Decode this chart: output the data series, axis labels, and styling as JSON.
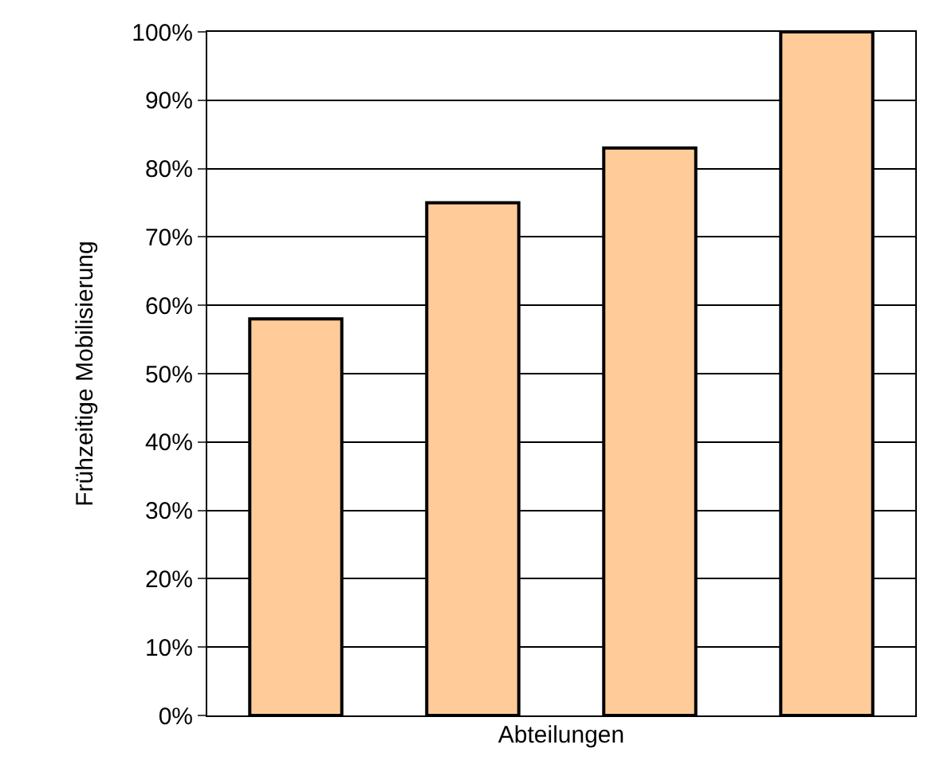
{
  "chart_data": {
    "type": "bar",
    "xlabel": "Abteilungen",
    "ylabel": "Frühzeitige Mobilisierung",
    "categories": [
      null,
      null,
      null,
      null
    ],
    "values": [
      58,
      75,
      83,
      100
    ],
    "color": "#ffcc99",
    "ylim": [
      0,
      100
    ],
    "yticks": [
      {
        "value": 0,
        "label": "0%"
      },
      {
        "value": 10,
        "label": "10%"
      },
      {
        "value": 20,
        "label": "20%"
      },
      {
        "value": 30,
        "label": "30%"
      },
      {
        "value": 40,
        "label": "40%"
      },
      {
        "value": 50,
        "label": "50%"
      },
      {
        "value": 60,
        "label": "60%"
      },
      {
        "value": 70,
        "label": "70%"
      },
      {
        "value": 80,
        "label": "80%"
      },
      {
        "value": 90,
        "label": "90%"
      },
      {
        "value": 100,
        "label": "100%"
      }
    ],
    "grid": "y",
    "tick_labels": "y",
    "legend": false
  }
}
